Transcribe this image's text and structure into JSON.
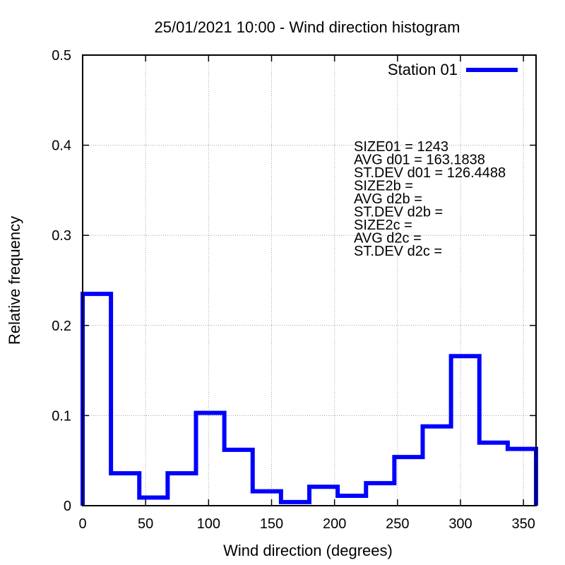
{
  "chart_data": {
    "type": "histogram",
    "title": "25/01/2021 10:00 - Wind direction histogram",
    "xlabel": "Wind direction (degrees)",
    "ylabel": "Relative frequency",
    "xlim": [
      0,
      360
    ],
    "ylim": [
      0,
      0.5
    ],
    "xticks": [
      0,
      50,
      100,
      150,
      200,
      250,
      300,
      350
    ],
    "yticks": [
      0,
      0.1,
      0.2,
      0.3,
      0.4,
      0.5
    ],
    "ytick_labels": [
      "0",
      "0.1",
      "0.2",
      "0.3",
      "0.4",
      "0.5"
    ],
    "grid": true,
    "legend_position": "top-right",
    "series": [
      {
        "name": "Station 01",
        "color": "#0000ff",
        "bin_edges": [
          0,
          22.5,
          45,
          67.5,
          90,
          112.5,
          135,
          157.5,
          180,
          202.5,
          225,
          247.5,
          270,
          292.5,
          315,
          337.5,
          360
        ],
        "values": [
          0.235,
          0.036,
          0.009,
          0.036,
          0.103,
          0.062,
          0.016,
          0.004,
          0.021,
          0.011,
          0.025,
          0.054,
          0.088,
          0.166,
          0.07,
          0.063
        ]
      }
    ],
    "annotations": [
      "SIZE01 = 1243",
      "AVG d01 = 163.1838",
      "ST.DEV d01 = 126.4488",
      "SIZE2b =",
      "AVG d2b =",
      "ST.DEV d2b =",
      "SIZE2c =",
      "AVG d2c =",
      "ST.DEV d2c ="
    ]
  }
}
